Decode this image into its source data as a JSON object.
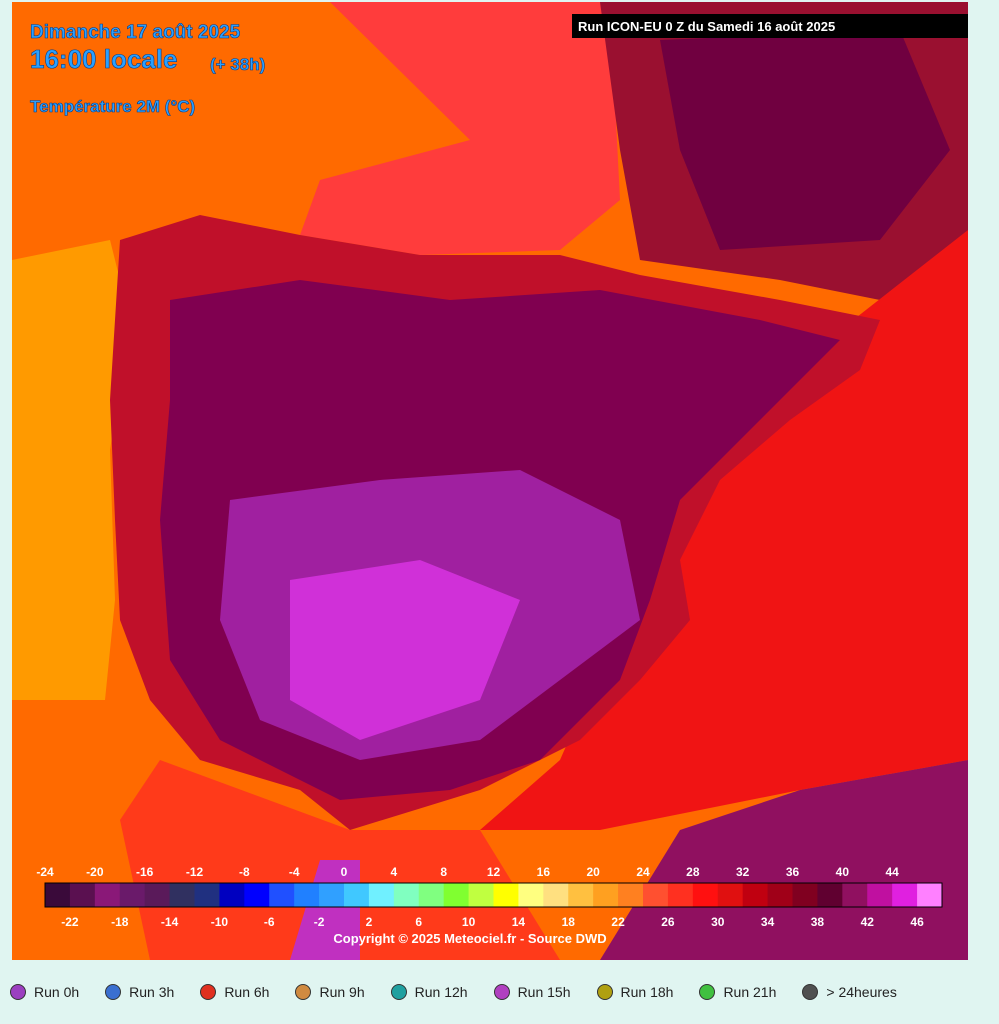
{
  "header": {
    "date": "Dimanche 17 août 2025",
    "time": "16:00 locale",
    "offset": "(+ 38h)",
    "parameter": "Température 2M (°C)",
    "run": "Run ICON-EU 0 Z du Samedi 16 août 2025"
  },
  "legend": {
    "top_labels": [
      -24,
      -20,
      -16,
      -12,
      -8,
      -4,
      0,
      4,
      8,
      12,
      16,
      20,
      24,
      28,
      32,
      36,
      40,
      44
    ],
    "bottom_labels": [
      -22,
      -18,
      -14,
      -10,
      -6,
      -2,
      2,
      6,
      10,
      14,
      18,
      22,
      26,
      30,
      34,
      38,
      42,
      46
    ],
    "colors": [
      "#3a0a3a",
      "#5a1050",
      "#8a1878",
      "#6a1a6a",
      "#5a1a5a",
      "#303060",
      "#203080",
      "#0000c0",
      "#0000ff",
      "#2050ff",
      "#2080ff",
      "#30a0ff",
      "#40c8ff",
      "#70f0ff",
      "#80ffc0",
      "#80ff80",
      "#80ff30",
      "#c0ff40",
      "#ffff00",
      "#ffff80",
      "#ffe080",
      "#ffc040",
      "#ffa020",
      "#ff8020",
      "#ff5030",
      "#ff3020",
      "#ff1010",
      "#e01010",
      "#c00010",
      "#a00018",
      "#800020",
      "#600030",
      "#901060",
      "#c010a0",
      "#e020e0",
      "#ff80ff"
    ]
  },
  "copyright": "Copyright © 2025 Meteociel.fr - Source DWD",
  "runs": [
    {
      "label": "Run 0h",
      "color": "#9b3fc0"
    },
    {
      "label": "Run 3h",
      "color": "#3a6fd0"
    },
    {
      "label": "Run 6h",
      "color": "#e03020"
    },
    {
      "label": "Run 9h",
      "color": "#d08a40"
    },
    {
      "label": "Run 12h",
      "color": "#20a0a0"
    },
    {
      "label": "Run 15h",
      "color": "#b040c0"
    },
    {
      "label": "Run 18h",
      "color": "#b0a010"
    },
    {
      "label": "Run 21h",
      "color": "#40c040"
    },
    {
      "label": "> 24heures",
      "color": "#505050"
    }
  ]
}
